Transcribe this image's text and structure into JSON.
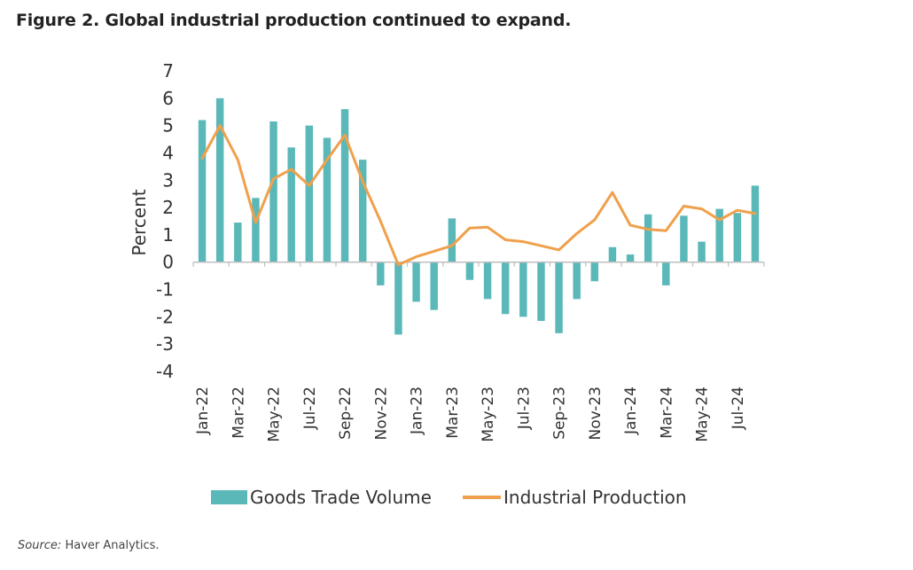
{
  "figure_title": "Figure 2. Global industrial production continued to expand.",
  "source_label": "Source:",
  "source_text": " Haver Analytics.",
  "colors": {
    "bar": "#5bb8b9",
    "line": "#f0a04b",
    "axis": "#bfbfbf"
  },
  "chart_data": {
    "type": "bar",
    "ylabel": "Percent",
    "ylim": [
      -4,
      7
    ],
    "yticks": [
      7,
      6,
      5,
      4,
      3,
      2,
      1,
      0,
      -1,
      -2,
      -3,
      -4
    ],
    "categories": [
      "Jan-22",
      "Feb-22",
      "Mar-22",
      "Apr-22",
      "May-22",
      "Jun-22",
      "Jul-22",
      "Aug-22",
      "Sep-22",
      "Oct-22",
      "Nov-22",
      "Dec-22",
      "Jan-23",
      "Feb-23",
      "Mar-23",
      "Apr-23",
      "May-23",
      "Jun-23",
      "Jul-23",
      "Aug-23",
      "Sep-23",
      "Oct-23",
      "Nov-23",
      "Dec-23",
      "Jan-24",
      "Feb-24",
      "Mar-24",
      "Apr-24",
      "May-24",
      "Jun-24",
      "Jul-24",
      "Aug-24"
    ],
    "tick_labels": [
      "Jan-22",
      "Mar-22",
      "May-22",
      "Jul-22",
      "Sep-22",
      "Nov-22",
      "Jan-23",
      "Mar-23",
      "May-23",
      "Jul-23",
      "Sep-23",
      "Nov-23",
      "Jan-24",
      "Mar-24",
      "May-24",
      "Jul-24"
    ],
    "series": [
      {
        "name": "Goods Trade Volume",
        "type": "bar",
        "values": [
          5.2,
          6.0,
          1.45,
          2.35,
          5.15,
          4.2,
          5.0,
          4.55,
          5.6,
          3.75,
          -0.85,
          -2.65,
          -1.45,
          -1.75,
          1.6,
          -0.65,
          -1.35,
          -1.9,
          -2.0,
          -2.15,
          -2.6,
          -1.35,
          -0.7,
          0.55,
          0.28,
          1.75,
          -0.85,
          1.7,
          0.75,
          1.95,
          1.8,
          2.8
        ]
      },
      {
        "name": "Industrial Production",
        "type": "line",
        "values": [
          3.8,
          5.0,
          3.75,
          1.45,
          3.05,
          3.4,
          2.8,
          3.75,
          4.65,
          2.95,
          1.5,
          -0.1,
          0.2,
          0.4,
          0.6,
          1.25,
          1.28,
          0.82,
          0.75,
          0.6,
          0.45,
          1.05,
          1.55,
          2.55,
          1.35,
          1.2,
          1.15,
          2.05,
          1.95,
          1.55,
          1.9,
          1.78
        ]
      }
    ],
    "legend_position": "bottom",
    "grid": false
  }
}
